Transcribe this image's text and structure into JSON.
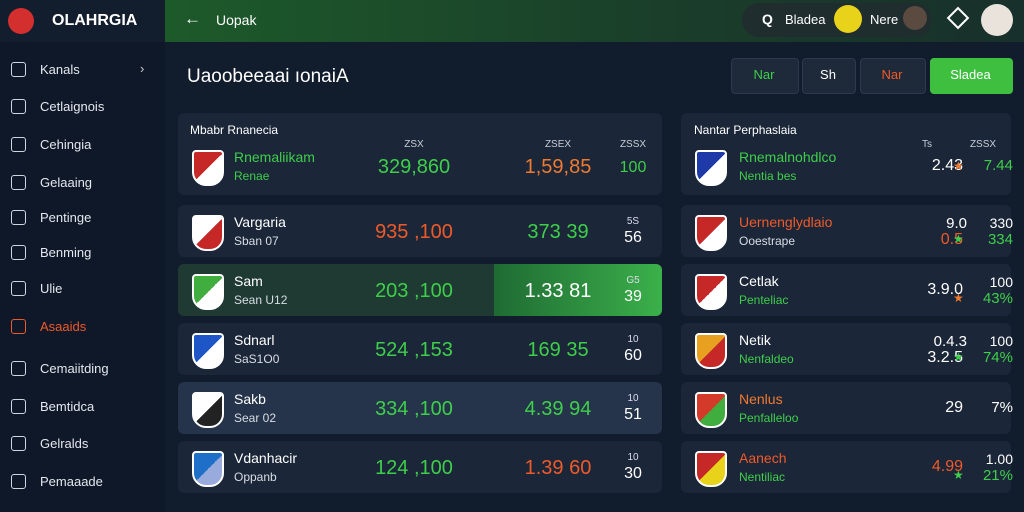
{
  "sidebar": {
    "logo": "OLAHRGIA",
    "items": [
      {
        "label": "Kanals"
      },
      {
        "label": "Cetlaignois"
      },
      {
        "label": "Cehingia"
      },
      {
        "label": "Gelaaing"
      },
      {
        "label": "Pentinge"
      },
      {
        "label": "Benming"
      },
      {
        "label": "Ulie"
      },
      {
        "label": "Asaaids",
        "highlight": true
      },
      {
        "label": "Cemaiitding"
      },
      {
        "label": "Bemtidca"
      },
      {
        "label": "Gelralds"
      },
      {
        "label": "Pemaaade"
      }
    ]
  },
  "topbar": {
    "back_label": "Uopak",
    "search": "Bladea",
    "user": "Nere"
  },
  "main": {
    "title": "Uaoobeeaai ıonaiA",
    "buttons": [
      {
        "label": "Nar",
        "color": "#3ecf4a"
      },
      {
        "label": "Sh",
        "color": "#ffffff"
      },
      {
        "label": "Nar",
        "color": "#f05a28"
      },
      {
        "label": "Sladea",
        "color": "#ffffff",
        "primary": true
      }
    ]
  },
  "matches": {
    "title": "Mbabr Rnanecia",
    "columns": [
      "ZSX",
      "ZSEX",
      "ZSSX"
    ],
    "rows": [
      {
        "team": "Rnemaliikam",
        "sub": "Renae",
        "a": "329,860",
        "a_color": "#3ecf4a",
        "b": "1,59,85",
        "b_color": "#f07a30",
        "c": "100",
        "team_color": "#3ecf4a"
      },
      {
        "team": "Vargaria",
        "sub": "Sban 07",
        "a": "935 ,100",
        "a_color": "#f05a28",
        "b": "373 39",
        "b_color": "#3ecf4a",
        "c_top": "5S",
        "c": "56"
      },
      {
        "team": "Sam",
        "sub": "Sean U12",
        "a": "203 ,100",
        "a_color": "#3ecf4a",
        "b": "1.33 81",
        "b_color": "#ffffff",
        "c_top": "G5",
        "c": "39",
        "highlight": true
      },
      {
        "team": "Sdnarl",
        "sub": "SaS1O0",
        "a": "524 ,153",
        "a_color": "#3ecf4a",
        "b": "169 35",
        "b_color": "#3ecf4a",
        "c_top": "10",
        "c": "60"
      },
      {
        "team": "Sakb",
        "sub": "Sear 02",
        "a": "334 ,100",
        "a_color": "#3ecf4a",
        "b": "4.39 94",
        "b_color": "#3ecf4a",
        "c_top": "10",
        "c": "51"
      },
      {
        "team": "Vdanhacir",
        "sub": "Oppanb",
        "a": "124 ,100",
        "a_color": "#3ecf4a",
        "b": "1.39 60",
        "b_color": "#f05a28",
        "c_top": "10",
        "c": "30"
      }
    ]
  },
  "players": {
    "title": "Nantar Perphaslaia",
    "columns": [
      "Ts",
      "ZSSX"
    ],
    "rows": [
      {
        "name": "Rnemalnohdlco",
        "sub": "Nentia bes",
        "v1": "2.43",
        "v2": "7.44",
        "name_color": "#3ecf4a"
      },
      {
        "name": "Uernenglydlaio",
        "sub": "Ooestrape",
        "v1_top": "9.0",
        "v1": "0.5",
        "v2_top": "330",
        "v2": "334",
        "name_color": "#f05a28"
      },
      {
        "name": "Cetlak",
        "sub": "Penteliac",
        "v1": "3.9.0",
        "v2_top": "100",
        "v2": "43%",
        "name_color": "#ffffff"
      },
      {
        "name": "Netik",
        "sub": "Nenfaldeo",
        "v1_top": "0.4.3",
        "v1": "3.2.5",
        "v2_top": "100",
        "v2": "74%",
        "name_color": "#ffffff"
      },
      {
        "name": "Nenlus",
        "sub": "Penfalleloo",
        "v1": "29",
        "v2": "7%",
        "name_color": "#f07a30"
      },
      {
        "name": "Aanech",
        "sub": "Nentiliac",
        "v1": "4.99",
        "v2_top": "1.00",
        "v2": "21%",
        "name_color": "#f05a28"
      }
    ]
  }
}
